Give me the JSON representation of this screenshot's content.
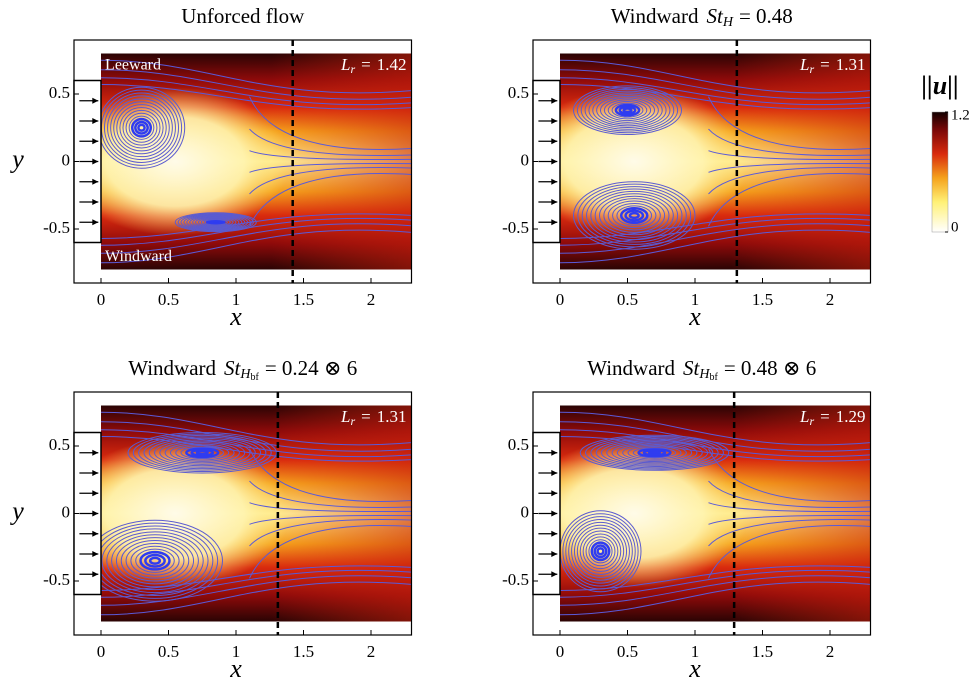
{
  "chart_data": [
    {
      "type": "flow-field",
      "title": "Unforced flow",
      "lr": {
        "symbol": "L",
        "sub": "r",
        "eq": "=",
        "value": 1.42
      },
      "annotations": [
        "Leeward",
        "Windward"
      ],
      "xlabel": "x",
      "ylabel": "y",
      "xlim": [
        -0.2,
        2.3
      ],
      "ylim": [
        -0.9,
        0.9
      ],
      "xticks": [
        0,
        0.5,
        1,
        1.5,
        2
      ],
      "yticks": [
        0.5,
        0,
        -0.5
      ]
    },
    {
      "type": "flow-field",
      "title": "Windward",
      "title_math": {
        "base": "St",
        "sub": "H",
        "rest": "= 0.48"
      },
      "lr": {
        "symbol": "L",
        "sub": "r",
        "eq": "=",
        "value": 1.31
      },
      "xlabel": "x",
      "xlim": [
        -0.2,
        2.3
      ],
      "ylim": [
        -0.9,
        0.9
      ],
      "xticks": [
        0,
        0.5,
        1,
        1.5,
        2
      ],
      "yticks": [
        0.5,
        0,
        -0.5
      ]
    },
    {
      "type": "flow-field",
      "title": "Windward",
      "title_math": {
        "base": "St",
        "sub": "H",
        "subsub": "bf",
        "rest": "= 0.24 ⊗ 6"
      },
      "lr": {
        "symbol": "L",
        "sub": "r",
        "eq": "=",
        "value": 1.31
      },
      "xlabel": "x",
      "ylabel": "y",
      "xlim": [
        -0.2,
        2.3
      ],
      "ylim": [
        -0.9,
        0.9
      ],
      "xticks": [
        0,
        0.5,
        1,
        1.5,
        2
      ],
      "yticks": [
        0.5,
        0,
        -0.5
      ]
    },
    {
      "type": "flow-field",
      "title": "Windward",
      "title_math": {
        "base": "St",
        "sub": "H",
        "subsub": "bf",
        "rest": "= 0.48 ⊗ 6"
      },
      "lr": {
        "symbol": "L",
        "sub": "r",
        "eq": "=",
        "value": 1.29
      },
      "xlabel": "x",
      "xlim": [
        -0.2,
        2.3
      ],
      "ylim": [
        -0.9,
        0.9
      ],
      "xticks": [
        0,
        0.5,
        1,
        1.5,
        2
      ],
      "yticks": [
        0.5,
        0,
        -0.5
      ]
    }
  ],
  "colorbar": {
    "label": "||u||",
    "lim": [
      0,
      1.2
    ],
    "ticks": [
      0,
      1.2
    ]
  }
}
